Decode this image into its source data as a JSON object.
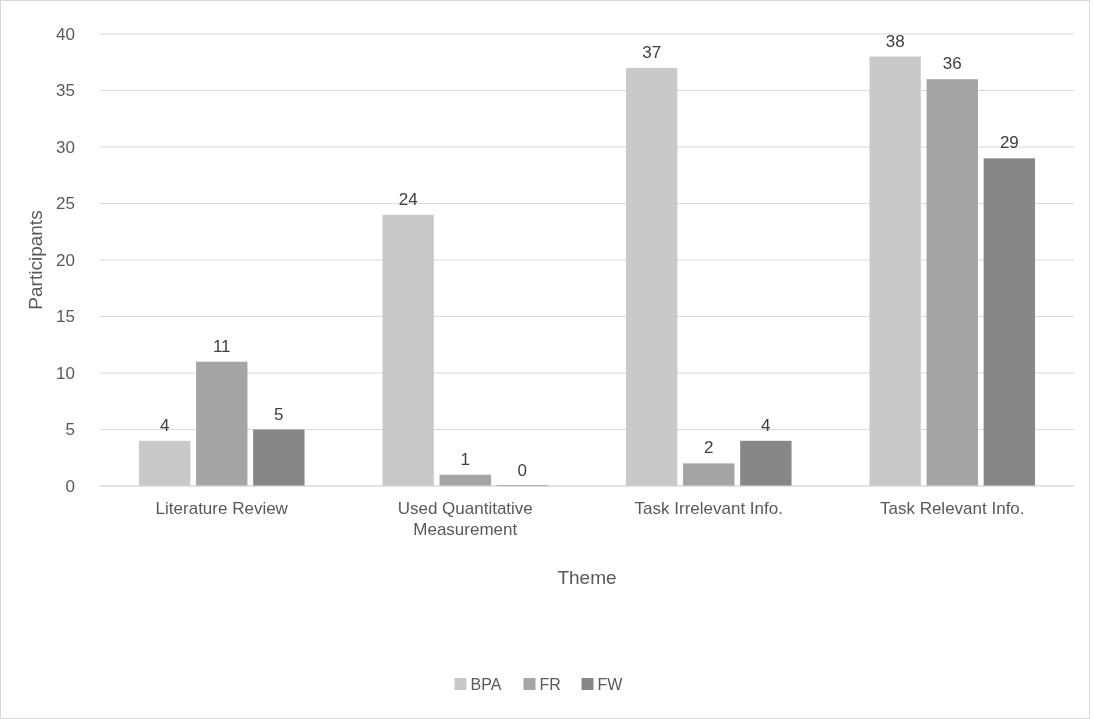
{
  "chart_data": {
    "type": "bar",
    "xlabel": "Theme",
    "ylabel": "Participants",
    "categories": [
      "Literature Review",
      "Used Quantitative Measurement",
      "Task Irrelevant Info.",
      "Task Relevant Info."
    ],
    "series": [
      {
        "name": "BPA",
        "color": "#c9c9c9",
        "values": [
          4,
          24,
          37,
          38
        ]
      },
      {
        "name": "FR",
        "color": "#a5a5a5",
        "values": [
          11,
          1,
          2,
          36
        ]
      },
      {
        "name": "FW",
        "color": "#878787",
        "values": [
          5,
          0,
          4,
          29
        ]
      }
    ],
    "ylim": [
      0,
      40
    ],
    "yticks": [
      0,
      5,
      10,
      15,
      20,
      25,
      30,
      35,
      40
    ],
    "grid": "y",
    "legend": "bottom",
    "data_labels": true
  }
}
